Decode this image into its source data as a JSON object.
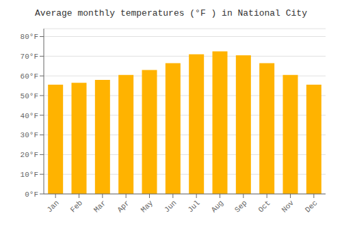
{
  "chart_data": {
    "type": "bar",
    "title": "Average monthly temperatures (°F ) in National City",
    "categories": [
      "Jan",
      "Feb",
      "Mar",
      "Apr",
      "May",
      "Jun",
      "Jul",
      "Aug",
      "Sep",
      "Oct",
      "Nov",
      "Dec"
    ],
    "values": [
      55.5,
      56.5,
      58,
      60.5,
      63,
      66.5,
      71,
      72.5,
      70.5,
      66.5,
      60.5,
      55.5
    ],
    "color": "#FFB300",
    "ylim": [
      0,
      84
    ],
    "yticks": [
      {
        "value": 0,
        "label": "0°F"
      },
      {
        "value": 10,
        "label": "10°F"
      },
      {
        "value": 20,
        "label": "20°F"
      },
      {
        "value": 30,
        "label": "30°F"
      },
      {
        "value": 40,
        "label": "40°F"
      },
      {
        "value": 50,
        "label": "50°F"
      },
      {
        "value": 60,
        "label": "60°F"
      },
      {
        "value": 70,
        "label": "70°F"
      },
      {
        "value": 80,
        "label": "80°F"
      }
    ],
    "grid": true
  }
}
